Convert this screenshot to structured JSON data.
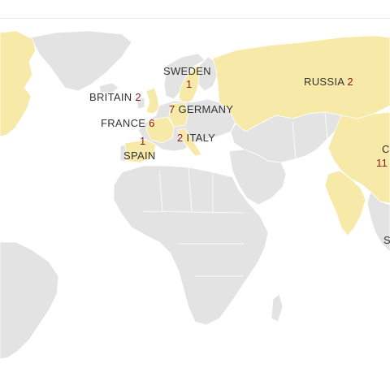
{
  "colors": {
    "highlighted_land": "#f7e9a8",
    "other_land": "#e3e3e3",
    "water": "#ffffff",
    "count_text": "#8b1a1a",
    "label_text": "#333333"
  },
  "countries": [
    {
      "id": "sweden",
      "name": "SWEDEN",
      "count": "1"
    },
    {
      "id": "britain",
      "name": "BRITAIN",
      "count": "2"
    },
    {
      "id": "germany",
      "name": "GERMANY",
      "count": "7"
    },
    {
      "id": "france",
      "name": "FRANCE",
      "count": "6"
    },
    {
      "id": "italy",
      "name": "ITALY",
      "count": "2"
    },
    {
      "id": "spain",
      "name": "SPAIN",
      "count": "1"
    },
    {
      "id": "russia",
      "name": "RUSSIA",
      "count": "2"
    },
    {
      "id": "china",
      "name": "C",
      "count": "11"
    }
  ],
  "partial_labels": {
    "far_right_letter": "S"
  }
}
